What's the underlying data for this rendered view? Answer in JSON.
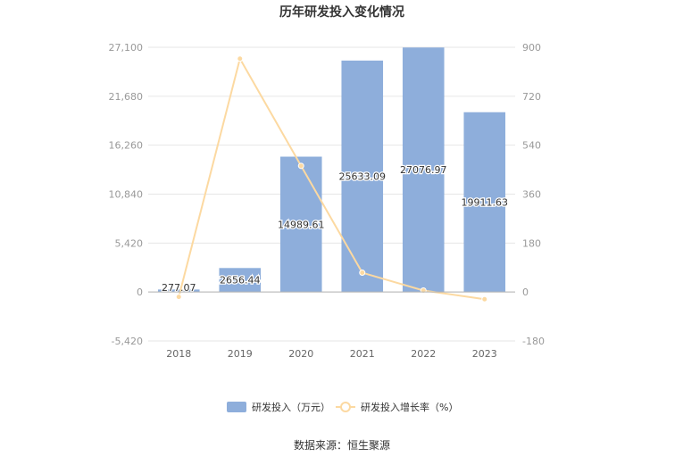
{
  "chart_data": {
    "title": "历年研发投入变化情况",
    "type": "bar",
    "categories": [
      "2018",
      "2019",
      "2020",
      "2021",
      "2022",
      "2023"
    ],
    "series": [
      {
        "name": "研发投入（万元）",
        "type": "bar",
        "axis": "left",
        "color": "#8eaedb",
        "values": [
          277.07,
          2656.44,
          14989.61,
          25633.09,
          27076.97,
          19911.63
        ],
        "labels": [
          "277.07",
          "2656.44",
          "14989.61",
          "25633.09",
          "27076.97",
          "19911.63"
        ]
      },
      {
        "name": "研发投入增长率（%）",
        "type": "line",
        "axis": "right",
        "color": "#fcd9a1",
        "values": [
          -18,
          858,
          464,
          71,
          5.6,
          -26.5
        ]
      }
    ],
    "y_left": {
      "min": -5420,
      "max": 27100,
      "ticks": [
        -5420,
        0,
        5420,
        10840,
        16260,
        21680,
        27100
      ],
      "tick_labels": [
        "-5,420",
        "0",
        "5,420",
        "10,840",
        "16,260",
        "21,680",
        "27,100"
      ]
    },
    "y_right": {
      "min": -180,
      "max": 900,
      "ticks": [
        -180,
        0,
        180,
        360,
        540,
        720,
        900
      ],
      "tick_labels": [
        "-180",
        "0",
        "180",
        "360",
        "540",
        "720",
        "900"
      ]
    },
    "grid": true,
    "legend_position": "bottom-center",
    "source": "数据来源：恒生聚源"
  }
}
